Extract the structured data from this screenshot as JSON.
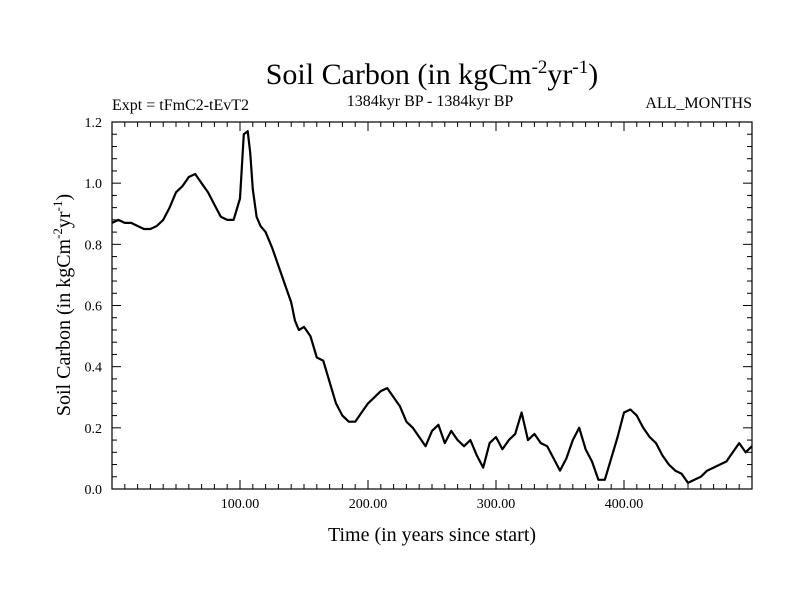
{
  "chart_data": {
    "type": "line",
    "title": "Soil Carbon (in kgCm",
    "title_sup1": "-2",
    "title_mid": "yr",
    "title_sup2": "-1",
    "title_end": ")",
    "subtitle_left": "Expt = tFmC2-tEvT2",
    "subtitle_center": "1384kyr BP - 1384kyr BP",
    "subtitle_right": "ALL_MONTHS",
    "xlabel": "Time (in years since start)",
    "ylabel": "Soil Carbon (in kgCm",
    "ylabel_sup1": "-2",
    "ylabel_mid": "yr",
    "ylabel_sup2": "-1",
    "ylabel_end": ")",
    "xlim": [
      0,
      500
    ],
    "ylim": [
      0,
      1.2
    ],
    "xticks": [
      100,
      200,
      300,
      400
    ],
    "xtick_labels": [
      "100.00",
      "200.00",
      "300.00",
      "400.00"
    ],
    "yticks": [
      0.0,
      0.2,
      0.4,
      0.6,
      0.8,
      1.0,
      1.2
    ],
    "ytick_labels": [
      "0.0",
      "0.2",
      "0.4",
      "0.6",
      "0.8",
      "1.0",
      "1.2"
    ],
    "series": [
      {
        "name": "Soil Carbon",
        "color": "#000000",
        "x": [
          0,
          5,
          10,
          15,
          20,
          25,
          30,
          35,
          40,
          45,
          50,
          55,
          60,
          65,
          70,
          75,
          80,
          85,
          90,
          95,
          100,
          103,
          106,
          108,
          110,
          113,
          116,
          120,
          125,
          130,
          135,
          140,
          143,
          146,
          150,
          155,
          160,
          165,
          170,
          175,
          180,
          185,
          190,
          195,
          200,
          205,
          210,
          215,
          220,
          225,
          230,
          235,
          240,
          245,
          250,
          255,
          260,
          265,
          270,
          275,
          280,
          285,
          290,
          295,
          300,
          305,
          310,
          315,
          320,
          325,
          330,
          335,
          340,
          345,
          350,
          355,
          360,
          365,
          370,
          375,
          380,
          385,
          390,
          395,
          400,
          405,
          410,
          415,
          420,
          425,
          430,
          435,
          440,
          445,
          450,
          455,
          460,
          465,
          470,
          475,
          480,
          485,
          490,
          495,
          500
        ],
        "y": [
          0.87,
          0.88,
          0.87,
          0.87,
          0.86,
          0.85,
          0.85,
          0.86,
          0.88,
          0.92,
          0.97,
          0.99,
          1.02,
          1.03,
          1.0,
          0.97,
          0.93,
          0.89,
          0.88,
          0.88,
          0.95,
          1.16,
          1.17,
          1.1,
          0.98,
          0.89,
          0.86,
          0.84,
          0.79,
          0.73,
          0.67,
          0.61,
          0.55,
          0.52,
          0.53,
          0.5,
          0.43,
          0.42,
          0.35,
          0.28,
          0.24,
          0.22,
          0.22,
          0.25,
          0.28,
          0.3,
          0.32,
          0.33,
          0.3,
          0.27,
          0.22,
          0.2,
          0.17,
          0.14,
          0.19,
          0.21,
          0.15,
          0.19,
          0.16,
          0.14,
          0.16,
          0.11,
          0.07,
          0.15,
          0.17,
          0.13,
          0.16,
          0.18,
          0.25,
          0.16,
          0.18,
          0.15,
          0.14,
          0.1,
          0.06,
          0.1,
          0.16,
          0.2,
          0.13,
          0.09,
          0.03,
          0.03,
          0.1,
          0.17,
          0.25,
          0.26,
          0.24,
          0.2,
          0.17,
          0.15,
          0.11,
          0.08,
          0.06,
          0.05,
          0.02,
          0.03,
          0.04,
          0.06,
          0.07,
          0.08,
          0.09,
          0.12,
          0.15,
          0.12,
          0.14
        ]
      }
    ]
  }
}
